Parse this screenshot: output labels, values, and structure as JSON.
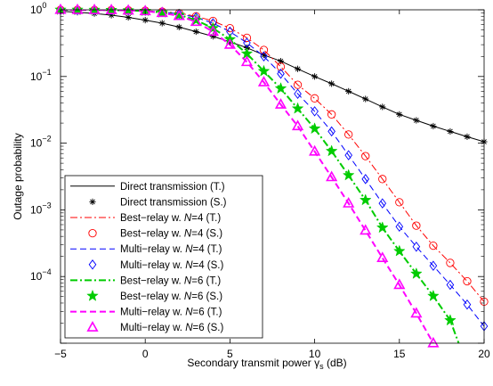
{
  "chart_data": {
    "type": "line",
    "xlabel": "Secondary transmit power γ",
    "xlabel_sub": "s",
    "xlabel_unit": " (dB)",
    "ylabel": "Outage probability",
    "xlim": [
      -5,
      20
    ],
    "ylim": [
      1e-05,
      1
    ],
    "yscale": "log",
    "grid": false,
    "legend_position": "lower-left",
    "x_ticks": [
      {
        "value": -5,
        "label": "−5"
      },
      {
        "value": 0,
        "label": "0"
      },
      {
        "value": 5,
        "label": "5"
      },
      {
        "value": 10,
        "label": "10"
      },
      {
        "value": 15,
        "label": "15"
      },
      {
        "value": 20,
        "label": "20"
      }
    ],
    "y_ticks": [
      {
        "value": 1,
        "base": "10",
        "exp": "0"
      },
      {
        "value": 0.1,
        "base": "10",
        "exp": "−1"
      },
      {
        "value": 0.01,
        "base": "10",
        "exp": "−2"
      },
      {
        "value": 0.001,
        "base": "10",
        "exp": "−3"
      },
      {
        "value": 0.0001,
        "base": "10",
        "exp": "−4"
      }
    ],
    "series": [
      {
        "name": "Direct transmission (T.)",
        "color": "#000000",
        "line": "solid",
        "marker": "none",
        "width": 1.0,
        "x": [
          -5,
          -4,
          -3,
          -2,
          -1,
          0,
          1,
          2,
          3,
          4,
          5,
          6,
          7,
          8,
          9,
          10,
          11,
          12,
          13,
          14,
          15,
          16,
          17,
          18,
          19,
          20
        ],
        "y": [
          0.95,
          0.92,
          0.88,
          0.83,
          0.77,
          0.7,
          0.63,
          0.55,
          0.47,
          0.4,
          0.33,
          0.27,
          0.21,
          0.17,
          0.13,
          0.1,
          0.078,
          0.06,
          0.046,
          0.035,
          0.027,
          0.022,
          0.018,
          0.015,
          0.0125,
          0.0105
        ]
      },
      {
        "name": "Direct transmission (S.)",
        "color": "#000000",
        "line": "none",
        "marker": "asterisk",
        "x": [
          -5,
          -4,
          -3,
          -2,
          -1,
          0,
          1,
          2,
          3,
          4,
          5,
          6,
          7,
          8,
          9,
          10,
          11,
          12,
          13,
          14,
          15,
          16,
          17,
          18,
          19,
          20
        ],
        "y": [
          0.95,
          0.92,
          0.88,
          0.83,
          0.77,
          0.7,
          0.63,
          0.55,
          0.47,
          0.4,
          0.33,
          0.27,
          0.21,
          0.17,
          0.13,
          0.1,
          0.078,
          0.06,
          0.046,
          0.035,
          0.027,
          0.022,
          0.018,
          0.015,
          0.0125,
          0.0105
        ]
      },
      {
        "name": "Best−relay w. N=4 (T.)",
        "color": "#ff0000",
        "line": "dashdot",
        "marker": "none",
        "width": 1.0,
        "x": [
          -5,
          -4,
          -3,
          -2,
          -1,
          0,
          1,
          2,
          3,
          4,
          5,
          6,
          7,
          8,
          9,
          10,
          11,
          12,
          13,
          14,
          15,
          16,
          17,
          18,
          19,
          20
        ],
        "y": [
          0.999,
          0.998,
          0.996,
          0.992,
          0.985,
          0.97,
          0.94,
          0.89,
          0.8,
          0.68,
          0.53,
          0.38,
          0.25,
          0.14,
          0.075,
          0.047,
          0.027,
          0.0135,
          0.0064,
          0.0029,
          0.0013,
          0.00058,
          0.00029,
          0.00016,
          8.5e-05,
          4.2e-05
        ]
      },
      {
        "name": "Best−relay w. N=4 (S.)",
        "color": "#ff0000",
        "line": "none",
        "marker": "circle",
        "x": [
          -5,
          -4,
          -3,
          -2,
          -1,
          0,
          1,
          2,
          3,
          4,
          5,
          6,
          7,
          8,
          9,
          10,
          11,
          12,
          13,
          14,
          15,
          16,
          17,
          18,
          19,
          20
        ],
        "y": [
          0.999,
          0.998,
          0.996,
          0.992,
          0.985,
          0.97,
          0.94,
          0.89,
          0.8,
          0.68,
          0.53,
          0.38,
          0.25,
          0.14,
          0.075,
          0.047,
          0.027,
          0.0135,
          0.0064,
          0.0029,
          0.0013,
          0.00058,
          0.00029,
          0.00016,
          8.5e-05,
          4.2e-05
        ]
      },
      {
        "name": "Multi−relay w. N=4 (T.)",
        "color": "#0000ff",
        "line": "dashed",
        "marker": "none",
        "width": 1.0,
        "x": [
          -5,
          -4,
          -3,
          -2,
          -1,
          0,
          1,
          2,
          3,
          4,
          5,
          6,
          7,
          8,
          9,
          10,
          11,
          12,
          13,
          14,
          15,
          16,
          17,
          18,
          19,
          20
        ],
        "y": [
          0.999,
          0.998,
          0.996,
          0.991,
          0.982,
          0.965,
          0.93,
          0.87,
          0.77,
          0.63,
          0.47,
          0.32,
          0.2,
          0.11,
          0.055,
          0.03,
          0.015,
          0.0066,
          0.0029,
          0.00125,
          0.00056,
          0.00028,
          0.000145,
          7.5e-05,
          3.8e-05,
          1.8e-05
        ]
      },
      {
        "name": "Multi−relay w. N=4 (S.)",
        "color": "#0000ff",
        "line": "none",
        "marker": "diamond",
        "x": [
          -5,
          -4,
          -3,
          -2,
          -1,
          0,
          1,
          2,
          3,
          4,
          5,
          6,
          7,
          8,
          9,
          10,
          11,
          12,
          13,
          14,
          15,
          16,
          17,
          18,
          19,
          20
        ],
        "y": [
          0.999,
          0.998,
          0.996,
          0.991,
          0.982,
          0.965,
          0.93,
          0.87,
          0.77,
          0.63,
          0.47,
          0.32,
          0.2,
          0.11,
          0.055,
          0.03,
          0.015,
          0.0066,
          0.0029,
          0.00125,
          0.00056,
          0.00028,
          0.000145,
          7.5e-05,
          3.8e-05,
          1.8e-05
        ]
      },
      {
        "name": "Best−relay w. N=6 (T.)",
        "color": "#00cc00",
        "line": "dashdot",
        "marker": "none",
        "width": 2.0,
        "x": [
          -5,
          -4,
          -3,
          -2,
          -1,
          0,
          1,
          2,
          3,
          4,
          5,
          6,
          7,
          8,
          9,
          10,
          11,
          12,
          13,
          14,
          15,
          16,
          17,
          18,
          18.5
        ],
        "y": [
          0.999,
          0.998,
          0.995,
          0.99,
          0.98,
          0.96,
          0.91,
          0.84,
          0.7,
          0.53,
          0.36,
          0.22,
          0.12,
          0.066,
          0.033,
          0.0165,
          0.0076,
          0.0033,
          0.0014,
          0.00054,
          0.00024,
          0.00011,
          5.1e-05,
          2.2e-05,
          1e-05
        ]
      },
      {
        "name": "Best−relay w. N=6 (S.)",
        "color": "#00cc00",
        "line": "none",
        "marker": "star",
        "x": [
          -5,
          -4,
          -3,
          -2,
          -1,
          0,
          1,
          2,
          3,
          4,
          5,
          6,
          7,
          8,
          9,
          10,
          11,
          12,
          13,
          14,
          15,
          16,
          17,
          18
        ],
        "y": [
          0.999,
          0.998,
          0.995,
          0.99,
          0.98,
          0.96,
          0.91,
          0.84,
          0.7,
          0.53,
          0.36,
          0.22,
          0.12,
          0.066,
          0.033,
          0.0165,
          0.0076,
          0.0033,
          0.0014,
          0.00054,
          0.00024,
          0.00011,
          5.1e-05,
          2.2e-05
        ]
      },
      {
        "name": "Multi−relay w. N=6 (T.)",
        "color": "#ff00ff",
        "line": "dashed",
        "marker": "none",
        "width": 2.0,
        "x": [
          -5,
          -4,
          -3,
          -2,
          -1,
          0,
          1,
          2,
          3,
          4,
          5,
          6,
          7,
          8,
          9,
          10,
          11,
          12,
          13,
          14,
          15,
          16,
          17
        ],
        "y": [
          0.999,
          0.998,
          0.995,
          0.99,
          0.978,
          0.955,
          0.9,
          0.81,
          0.66,
          0.47,
          0.3,
          0.165,
          0.082,
          0.038,
          0.018,
          0.0075,
          0.0031,
          0.00125,
          0.00049,
          0.00019,
          7.5e-05,
          2.8e-05,
          1e-05
        ]
      },
      {
        "name": "Multi−relay w. N=6 (S.)",
        "color": "#ff00ff",
        "line": "none",
        "marker": "triangle",
        "x": [
          -5,
          -4,
          -3,
          -2,
          -1,
          0,
          1,
          2,
          3,
          4,
          5,
          6,
          7,
          8,
          9,
          10,
          11,
          12,
          13,
          14,
          15,
          16,
          17
        ],
        "y": [
          0.999,
          0.998,
          0.995,
          0.99,
          0.978,
          0.955,
          0.9,
          0.81,
          0.66,
          0.47,
          0.3,
          0.165,
          0.082,
          0.038,
          0.018,
          0.0075,
          0.0031,
          0.00125,
          0.00049,
          0.00019,
          7.5e-05,
          2.8e-05,
          1e-05
        ]
      }
    ]
  }
}
